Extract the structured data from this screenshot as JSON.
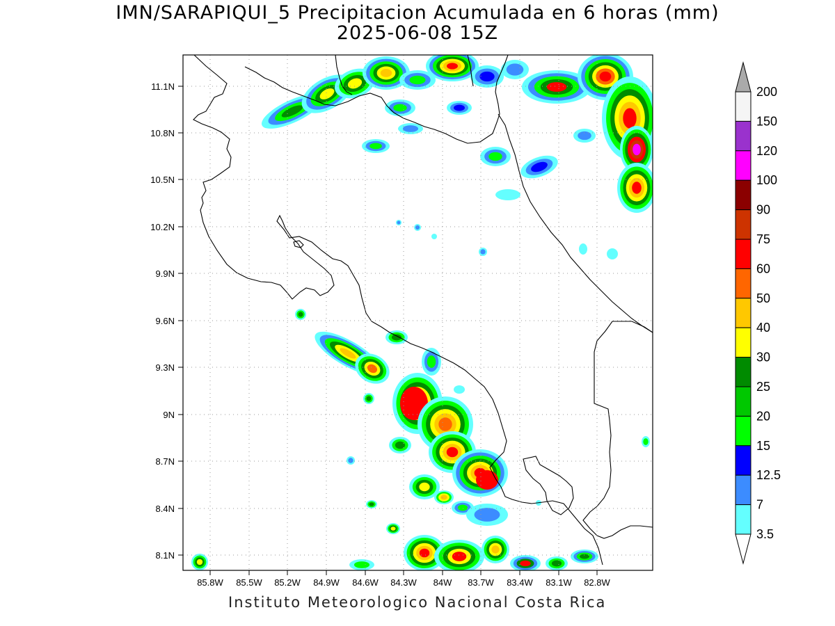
{
  "title": {
    "line1": "IMN/SARAPIQUI_5 Precipitacion Acumulada en 6 horas (mm)",
    "line2": "2025-06-08 15Z"
  },
  "footer": "Instituto Meteorologico Nacional Costa Rica",
  "axes": {
    "lat_labels": [
      "11.1N",
      "10.8N",
      "10.5N",
      "10.2N",
      "9.9N",
      "9.6N",
      "9.3N",
      "9N",
      "8.7N",
      "8.4N",
      "8.1N"
    ],
    "lon_labels": [
      "85.8W",
      "85.5W",
      "85.2W",
      "84.9W",
      "84.6W",
      "84.3W",
      "84W",
      "83.7W",
      "83.4W",
      "83.1W",
      "82.8W"
    ],
    "grid": "dotted"
  },
  "colorbar": {
    "labels": [
      "200",
      "150",
      "120",
      "100",
      "90",
      "75",
      "60",
      "50",
      "40",
      "30",
      "25",
      "20",
      "15",
      "12.5",
      "7",
      "3.5"
    ],
    "colors": [
      "#f5f5f5",
      "#9a32cd",
      "#ff00ff",
      "#8b0000",
      "#cd3300",
      "#ff0000",
      "#ff6600",
      "#ffc800",
      "#ffff00",
      "#008b00",
      "#00c800",
      "#00ff00",
      "#0000ff",
      "#3c8cff",
      "#64ffff"
    ],
    "over_color": "#aaaaaa",
    "under_color": "#ffffff"
  },
  "palette": {
    "c35": "#64ffff",
    "c7": "#3c8cff",
    "c125": "#0000ff",
    "c15": "#00ff00",
    "c20": "#00c800",
    "c25": "#008b00",
    "c30": "#ffff00",
    "c40": "#ffc800",
    "c50": "#ff6600",
    "c60": "#ff0000",
    "c90": "#cd3300",
    "c120": "#ff00ff"
  }
}
